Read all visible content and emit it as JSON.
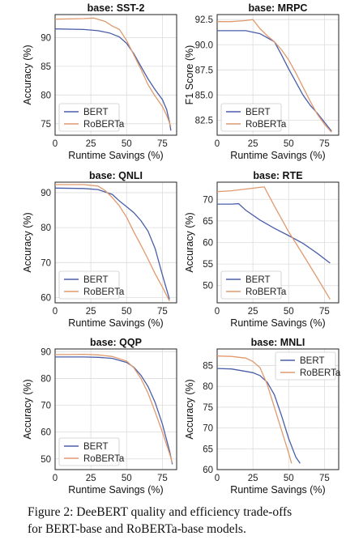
{
  "colors": {
    "bert": "#4a5ea8",
    "roberta": "#e09a6e",
    "grid": "#dcdcdc",
    "axis": "#222222"
  },
  "caption": {
    "line1": "Figure 2:  DeeBERT quality and efficiency trade-offs",
    "line2": "for BERT-base and RoBERTa-base models."
  },
  "chart_data": [
    {
      "type": "line",
      "title": "base: SST-2",
      "xlabel": "Runtime Savings (%)",
      "ylabel": "Accuracy (%)",
      "xlim": [
        0,
        85
      ],
      "ylim": [
        73,
        94
      ],
      "xticks": [
        0,
        25,
        50,
        75
      ],
      "yticks": [
        75,
        80,
        85,
        90
      ],
      "grid": true,
      "legend": "bottom-left",
      "series": [
        {
          "name": "BERT",
          "x": [
            0,
            20,
            30,
            38,
            45,
            50,
            55,
            60,
            65,
            70,
            75,
            78,
            80,
            81
          ],
          "y": [
            91.5,
            91.4,
            91.2,
            90.8,
            90.1,
            89.0,
            87.2,
            85.0,
            82.8,
            80.9,
            79.2,
            77.5,
            75.3,
            73.8
          ]
        },
        {
          "name": "RoBERTa",
          "x": [
            0,
            20,
            27,
            35,
            40,
            45,
            50,
            55,
            60,
            65,
            70,
            75,
            78,
            81
          ],
          "y": [
            93.2,
            93.3,
            93.4,
            92.8,
            92.0,
            91.4,
            89.5,
            87.0,
            84.5,
            81.8,
            79.8,
            78.0,
            76.5,
            74.5
          ]
        }
      ]
    },
    {
      "type": "line",
      "title": "base: MRPC",
      "xlabel": "Runtime Savings (%)",
      "ylabel": "F1 Score (%)",
      "xlim": [
        0,
        85
      ],
      "ylim": [
        81,
        93
      ],
      "xticks": [
        0,
        25,
        50,
        75
      ],
      "yticks": [
        82.5,
        85.0,
        87.5,
        90.0,
        92.5
      ],
      "grid": true,
      "legend": "bottom-left",
      "series": [
        {
          "name": "BERT",
          "x": [
            0,
            20,
            30,
            40,
            45,
            50,
            55,
            60,
            65,
            70,
            75,
            80
          ],
          "y": [
            91.4,
            91.4,
            91.1,
            90.3,
            89.0,
            87.6,
            86.3,
            85.0,
            84.0,
            83.2,
            82.3,
            81.4
          ]
        },
        {
          "name": "RoBERTa",
          "x": [
            0,
            10,
            20,
            25,
            30,
            35,
            40,
            45,
            50,
            55,
            60,
            65,
            70,
            75,
            80
          ],
          "y": [
            92.3,
            92.3,
            92.4,
            92.5,
            91.6,
            90.9,
            90.3,
            89.5,
            88.5,
            87.2,
            85.8,
            84.4,
            83.1,
            82.1,
            81.3
          ]
        }
      ]
    },
    {
      "type": "line",
      "title": "base: QNLI",
      "xlabel": "Runtime Savings (%)",
      "ylabel": "Accuracy (%)",
      "xlim": [
        0,
        85
      ],
      "ylim": [
        58.5,
        93
      ],
      "xticks": [
        0,
        25,
        50,
        75
      ],
      "yticks": [
        60,
        70,
        80,
        90
      ],
      "grid": true,
      "legend": "bottom-left",
      "series": [
        {
          "name": "BERT",
          "x": [
            0,
            20,
            30,
            40,
            45,
            50,
            55,
            60,
            65,
            70,
            75,
            80
          ],
          "y": [
            91.3,
            91.2,
            90.9,
            89.5,
            87.6,
            86.0,
            84.3,
            82.0,
            79.0,
            74.0,
            66.5,
            59.5
          ]
        },
        {
          "name": "RoBERTa",
          "x": [
            0,
            20,
            30,
            35,
            40,
            45,
            50,
            55,
            60,
            65,
            70,
            75,
            80
          ],
          "y": [
            92.3,
            92.3,
            91.9,
            90.6,
            88.6,
            86.2,
            83.0,
            78.8,
            75.0,
            71.0,
            66.8,
            63.0,
            59.0
          ]
        }
      ]
    },
    {
      "type": "line",
      "title": "base: RTE",
      "xlabel": "Runtime Savings (%)",
      "ylabel": "Accuracy (%)",
      "xlim": [
        0,
        85
      ],
      "ylim": [
        46,
        74
      ],
      "xticks": [
        0,
        25,
        50,
        75
      ],
      "yticks": [
        50,
        55,
        60,
        65,
        70
      ],
      "grid": true,
      "legend": "bottom-left",
      "series": [
        {
          "name": "BERT",
          "x": [
            0,
            10,
            15,
            20,
            30,
            40,
            50,
            60,
            70,
            79
          ],
          "y": [
            68.9,
            68.9,
            69.0,
            67.5,
            65.2,
            63.3,
            61.6,
            59.8,
            57.5,
            55.2
          ]
        },
        {
          "name": "RoBERTa",
          "x": [
            0,
            10,
            20,
            30,
            33,
            40,
            50,
            60,
            70,
            79
          ],
          "y": [
            71.8,
            72.0,
            72.4,
            72.8,
            72.9,
            68.5,
            62.5,
            57.2,
            51.8,
            46.8
          ]
        }
      ]
    },
    {
      "type": "line",
      "title": "base: QQP",
      "xlabel": "Runtime Savings (%)",
      "ylabel": "Accuracy (%)",
      "xlim": [
        0,
        85
      ],
      "ylim": [
        46,
        91
      ],
      "xticks": [
        0,
        25,
        50,
        75
      ],
      "yticks": [
        50,
        60,
        70,
        80,
        90
      ],
      "grid": true,
      "legend": "bottom-left",
      "series": [
        {
          "name": "BERT",
          "x": [
            0,
            20,
            30,
            40,
            50,
            55,
            60,
            65,
            70,
            75,
            80,
            82
          ],
          "y": [
            88.0,
            88.0,
            87.9,
            87.5,
            86.0,
            84.2,
            81.2,
            77.0,
            71.0,
            63.0,
            53.0,
            48.0
          ]
        },
        {
          "name": "RoBERTa",
          "x": [
            0,
            20,
            30,
            40,
            50,
            55,
            60,
            65,
            70,
            75,
            80,
            82
          ],
          "y": [
            88.9,
            89.0,
            88.8,
            88.2,
            86.5,
            84.0,
            80.0,
            74.5,
            67.5,
            60.0,
            52.0,
            48.5
          ]
        }
      ]
    },
    {
      "type": "line",
      "title": "base: MNLI",
      "xlabel": "Runtime Savings (%)",
      "ylabel": "Accuracy (%)",
      "xlim": [
        0,
        85
      ],
      "ylim": [
        60,
        89
      ],
      "xticks": [
        0,
        25,
        50,
        75
      ],
      "yticks": [
        60,
        65,
        70,
        75,
        80,
        85
      ],
      "grid": true,
      "legend": "top-right",
      "series": [
        {
          "name": "BERT",
          "x": [
            0,
            10,
            20,
            25,
            30,
            35,
            40,
            45,
            50,
            55,
            58
          ],
          "y": [
            84.3,
            84.2,
            83.6,
            83.3,
            82.6,
            81.0,
            78.0,
            73.0,
            67.5,
            63.0,
            61.5
          ]
        },
        {
          "name": "RoBERTa",
          "x": [
            0,
            10,
            20,
            25,
            30,
            35,
            40,
            45,
            50,
            52
          ],
          "y": [
            87.3,
            87.2,
            86.8,
            86.0,
            84.5,
            80.5,
            75.0,
            69.5,
            64.0,
            61.5
          ]
        }
      ]
    }
  ]
}
